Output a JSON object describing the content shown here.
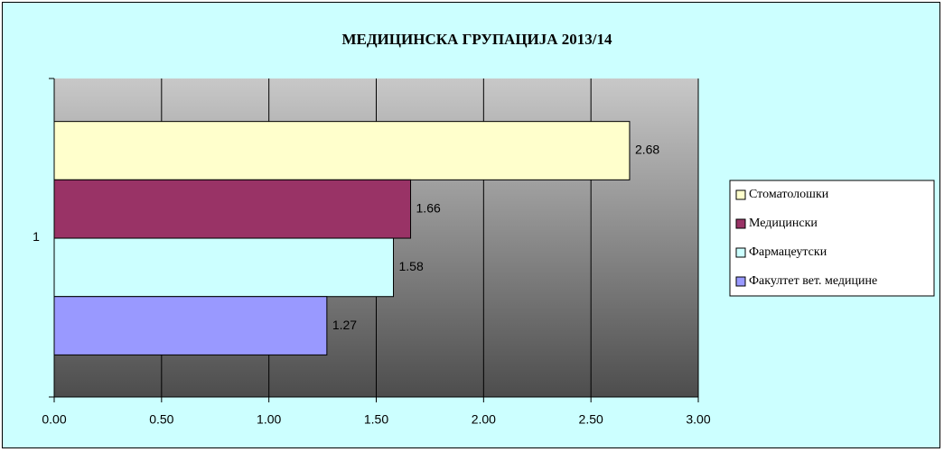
{
  "chart_data": {
    "type": "bar",
    "orientation": "horizontal",
    "title": "МЕДИЦИНСКА ГРУПАЦИЈА 2013/14",
    "categories": [
      "1"
    ],
    "series": [
      {
        "name": "Стоматолошки",
        "color": "#ffffcc",
        "values": [
          2.68
        ]
      },
      {
        "name": "Медицински",
        "color": "#993366",
        "values": [
          1.66
        ]
      },
      {
        "name": "Фармацеутски",
        "color": "#ccffff",
        "values": [
          1.58
        ]
      },
      {
        "name": "Факултет вет. медицине",
        "color": "#9999ff",
        "values": [
          1.27
        ]
      }
    ],
    "xlim": [
      0,
      3
    ],
    "xticks": [
      {
        "value": 0,
        "label": "0.00"
      },
      {
        "value": 0.5,
        "label": "0.50"
      },
      {
        "value": 1,
        "label": "1.00"
      },
      {
        "value": 1.5,
        "label": "1.50"
      },
      {
        "value": 2,
        "label": "2.00"
      },
      {
        "value": 2.5,
        "label": "2.50"
      },
      {
        "value": 3,
        "label": "3.00"
      }
    ],
    "grid": true,
    "legend": "right"
  }
}
